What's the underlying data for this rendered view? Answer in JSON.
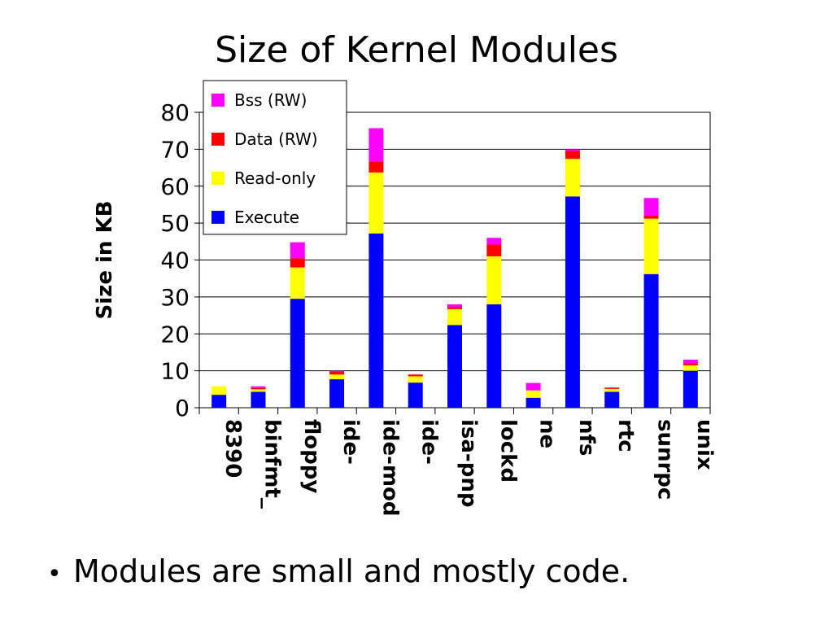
{
  "slide": {
    "title": "Size of Kernel Modules",
    "bullet": "Modules are small and mostly code."
  },
  "chart_data": {
    "type": "bar",
    "stacked": true,
    "title": "",
    "ylabel": "Size in KB",
    "xlabel": "",
    "ylim": [
      0,
      80
    ],
    "yticks": [
      0,
      10,
      20,
      30,
      40,
      50,
      60,
      70,
      80
    ],
    "grid": true,
    "legend_position": "top-left",
    "categories": [
      "8390",
      "binfmt_",
      "floppy",
      "ide-",
      "ide-mod",
      "ide-",
      "isa-pnp",
      "lockd",
      "ne",
      "nfs",
      "rtc",
      "sunrpc",
      "unix"
    ],
    "series": [
      {
        "name": "Execute",
        "color": "#0000ff",
        "values": [
          3.5,
          4.3,
          29.5,
          7.7,
          47.2,
          6.8,
          22.4,
          28.0,
          2.7,
          57.2,
          4.3,
          36.2,
          10.0
        ]
      },
      {
        "name": "Read-only",
        "color": "#ffff00",
        "values": [
          2.3,
          0.7,
          8.5,
          1.3,
          16.5,
          1.7,
          4.3,
          13.0,
          2.0,
          10.2,
          0.8,
          15.0,
          1.5
        ]
      },
      {
        "name": "Data (RW)",
        "color": "#ff0000",
        "values": [
          0.0,
          0.3,
          2.5,
          0.8,
          3.0,
          0.5,
          0.5,
          3.2,
          0.0,
          2.2,
          0.2,
          0.8,
          0.5
        ]
      },
      {
        "name": "Bss (RW)",
        "color": "#ff00ff",
        "values": [
          0.0,
          0.5,
          4.3,
          0.2,
          9.0,
          0.0,
          0.8,
          1.8,
          2.0,
          0.4,
          0.2,
          4.8,
          1.0
        ]
      }
    ]
  }
}
